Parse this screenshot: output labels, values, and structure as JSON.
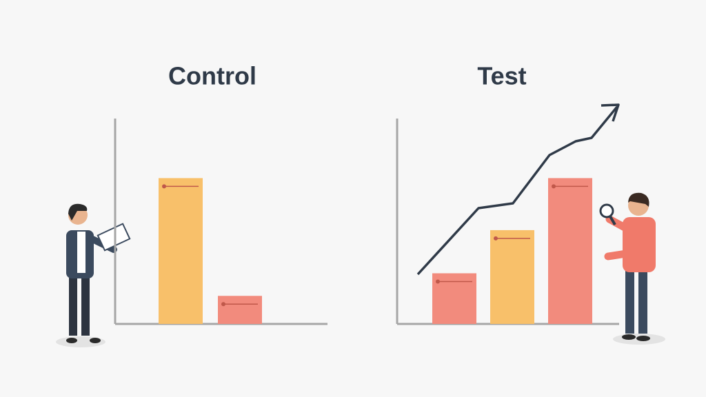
{
  "chart_data": [
    {
      "type": "bar",
      "title": "Control",
      "values": [
        213,
        41
      ],
      "colors": [
        "#f8c06a",
        "#f28b7d"
      ],
      "ylim": [
        0,
        300
      ]
    },
    {
      "type": "bar",
      "title": "Test",
      "values": [
        74,
        137,
        213
      ],
      "colors": [
        "#f28b7d",
        "#f8c06a",
        "#f28b7d"
      ],
      "ylim": [
        0,
        300
      ]
    }
  ]
}
